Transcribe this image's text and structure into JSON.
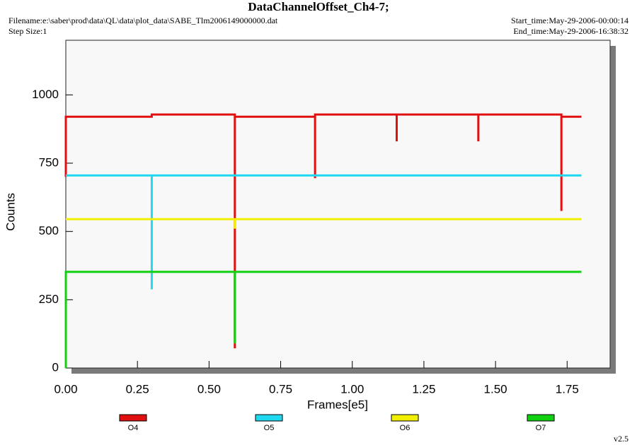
{
  "chart_data": {
    "type": "line",
    "title": "DataChannelOffset_Ch4-7;",
    "filename": "Filename:e:\\saber\\prod\\data\\QL\\data\\plot_data\\SABE_Tlm2006149000000.dat",
    "step_size": "Step Size:1",
    "start_time": "Start_time:May-29-2006-00:00:14",
    "end_time": "End_time:May-29-2006-16:38:32",
    "version": "v2.5",
    "x_label": "Frames[e5]",
    "y_label": "Counts",
    "xlim": [
      0,
      1.9
    ],
    "ylim": [
      0,
      1200
    ],
    "xticks": [
      {
        "value": 0,
        "label": "0.00"
      },
      0.25,
      {
        "value": 0.5,
        "label": "0.50"
      },
      0.75,
      {
        "value": 1,
        "label": "1.00"
      },
      1.25,
      {
        "value": 1.5,
        "label": "1.50"
      },
      1.75
    ],
    "yticks": [
      0,
      250,
      500,
      750,
      1000
    ],
    "series": [
      {
        "name": "O4",
        "color": "#e01010",
        "x": [
          0,
          0,
          0.3,
          0.3,
          0.59,
          0.59,
          0.59,
          0.87,
          0.87,
          0.87,
          1.155,
          1.155,
          1.155,
          1.44,
          1.44,
          1.44,
          1.73,
          1.73,
          1.73,
          1.8
        ],
        "values": [
          700,
          920,
          920,
          928,
          928,
          72,
          920,
          920,
          695,
          928,
          928,
          830,
          928,
          928,
          830,
          928,
          928,
          575,
          920,
          920
        ]
      },
      {
        "name": "O5",
        "color": "#20d8f0",
        "x": [
          0,
          0.3,
          0.3,
          0.3,
          1.8
        ],
        "values": [
          705,
          705,
          288,
          705,
          705
        ]
      },
      {
        "name": "O6",
        "color": "#f0f000",
        "x": [
          0,
          0.59,
          0.59,
          0.59,
          1.8
        ],
        "values": [
          545,
          545,
          510,
          545,
          545
        ]
      },
      {
        "name": "O7",
        "color": "#10d010",
        "x": [
          0,
          0,
          0.59,
          0.59,
          0.59,
          1.8
        ],
        "values": [
          0,
          352,
          352,
          90,
          352,
          352
        ]
      }
    ]
  }
}
